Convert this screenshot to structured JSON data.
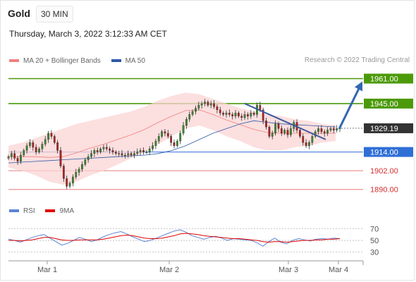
{
  "header": {
    "title": "Gold",
    "timeframe": "30 MIN",
    "date": "Thursday, March 3, 2022 3:12:33 AM CET"
  },
  "legend": {
    "items": [
      {
        "label": "MA 20 + Bollinger Bands",
        "color": "#f08080"
      },
      {
        "label": "MA 50",
        "color": "#2e5aa6"
      }
    ],
    "credit": "Research © 2022 Trading Central"
  },
  "rsi_legend": {
    "items": [
      {
        "label": "RSI",
        "color": "#5b84d6"
      },
      {
        "label": "9MA",
        "color": "#e00000"
      }
    ]
  },
  "colors": {
    "green": "#4c9a0a",
    "blue": "#2f6fd6",
    "red": "#e77a7a",
    "dark": "#333333",
    "candle_up": "#3a8a2a",
    "candle_down": "#b02020",
    "band_fill": "#fbd4d4",
    "arrow": "#3367b0"
  },
  "chart_data": {
    "type": "candlestick",
    "instrument": "Gold",
    "timeframe": "30 MIN",
    "x_ticks": [
      "Mar 1",
      "Mar 2",
      "Mar 3",
      "Mar 4"
    ],
    "ylim": [
      1884,
      1968
    ],
    "current_price": 1929.19,
    "levels": [
      {
        "value": 1961.0,
        "label": "1961.00",
        "role": "resistance"
      },
      {
        "value": 1945.0,
        "label": "1945.00",
        "role": "resistance"
      },
      {
        "value": 1929.19,
        "label": "1929.19",
        "role": "current"
      },
      {
        "value": 1914.0,
        "label": "1914.00",
        "role": "pivot"
      },
      {
        "value": 1902.0,
        "label": "1902.00",
        "role": "support"
      },
      {
        "value": 1890.0,
        "label": "1890.00",
        "role": "support"
      }
    ],
    "closes": [
      1911,
      1913,
      1910,
      1908,
      1912,
      1915,
      1918,
      1920,
      1917,
      1914,
      1916,
      1919,
      1922,
      1926,
      1924,
      1920,
      1915,
      1905,
      1897,
      1892,
      1894,
      1898,
      1901,
      1903,
      1906,
      1909,
      1911,
      1913,
      1915,
      1914,
      1916,
      1917,
      1916,
      1915,
      1914,
      1913,
      1913,
      1912,
      1912,
      1913,
      1912,
      1913,
      1914,
      1915,
      1914,
      1914,
      1916,
      1918,
      1921,
      1924,
      1927,
      1926,
      1924,
      1920,
      1918,
      1921,
      1926,
      1931,
      1935,
      1938,
      1940,
      1942,
      1944,
      1945,
      1946,
      1944,
      1945,
      1943,
      1941,
      1939,
      1938,
      1939,
      1938,
      1937,
      1939,
      1937,
      1936,
      1938,
      1937,
      1939,
      1938,
      1944,
      1941,
      1934,
      1930,
      1924,
      1926,
      1932,
      1929,
      1926,
      1928,
      1925,
      1929,
      1933,
      1928,
      1924,
      1920,
      1918,
      1920,
      1924,
      1927,
      1929,
      1927,
      1926,
      1928,
      1929,
      1928,
      1929,
      1929.19
    ],
    "ma20_upper": [
      1918,
      1920,
      1923,
      1926,
      1929,
      1932,
      1934,
      1936,
      1938,
      1940,
      1943,
      1947,
      1950,
      1952,
      1951,
      1948,
      1945,
      1942,
      1940,
      1938,
      1937,
      1935,
      1934,
      1932,
      1931
    ],
    "ma20_lower": [
      1904,
      1902,
      1899,
      1895,
      1893,
      1895,
      1899,
      1902,
      1906,
      1910,
      1914,
      1919,
      1924,
      1929,
      1931,
      1928,
      1924,
      1921,
      1917,
      1915,
      1915,
      1917,
      1918,
      1920,
      1921
    ],
    "ma50": [
      1907,
      1907.5,
      1908,
      1908.5,
      1909,
      1909.5,
      1910,
      1910.5,
      1911,
      1911.5,
      1912,
      1913,
      1915,
      1918,
      1922,
      1926,
      1929,
      1932,
      1934,
      1933,
      1932,
      1931.5,
      1931,
      1930.5,
      1930
    ],
    "trendline": {
      "from": 1945,
      "to": 1922
    },
    "rsi_panel": {
      "levels": [
        70,
        50,
        30
      ],
      "ylim": [
        20,
        80
      ],
      "rsi": [
        52,
        50,
        47,
        51,
        55,
        58,
        60,
        54,
        48,
        42,
        45,
        50,
        55,
        52,
        48,
        51,
        56,
        60,
        63,
        65,
        61,
        56,
        52,
        48,
        50,
        54,
        58,
        62,
        66,
        68,
        64,
        58,
        55,
        52,
        55,
        57,
        54,
        50,
        53,
        52,
        51,
        50,
        46,
        40,
        48,
        54,
        47,
        44,
        50,
        53,
        51,
        49,
        52,
        53,
        52,
        54,
        53
      ],
      "ma9": [
        50,
        50,
        49,
        50,
        51,
        53,
        55,
        55,
        53,
        51,
        50,
        50,
        51,
        51,
        51,
        51,
        52,
        54,
        56,
        58,
        59,
        58,
        56,
        54,
        53,
        53,
        54,
        56,
        58,
        61,
        62,
        61,
        60,
        58,
        57,
        56,
        55,
        54,
        53,
        53,
        52,
        51,
        50,
        48,
        47,
        48,
        48,
        47,
        48,
        49,
        50,
        50,
        51,
        51,
        52,
        52,
        53
      ]
    }
  }
}
